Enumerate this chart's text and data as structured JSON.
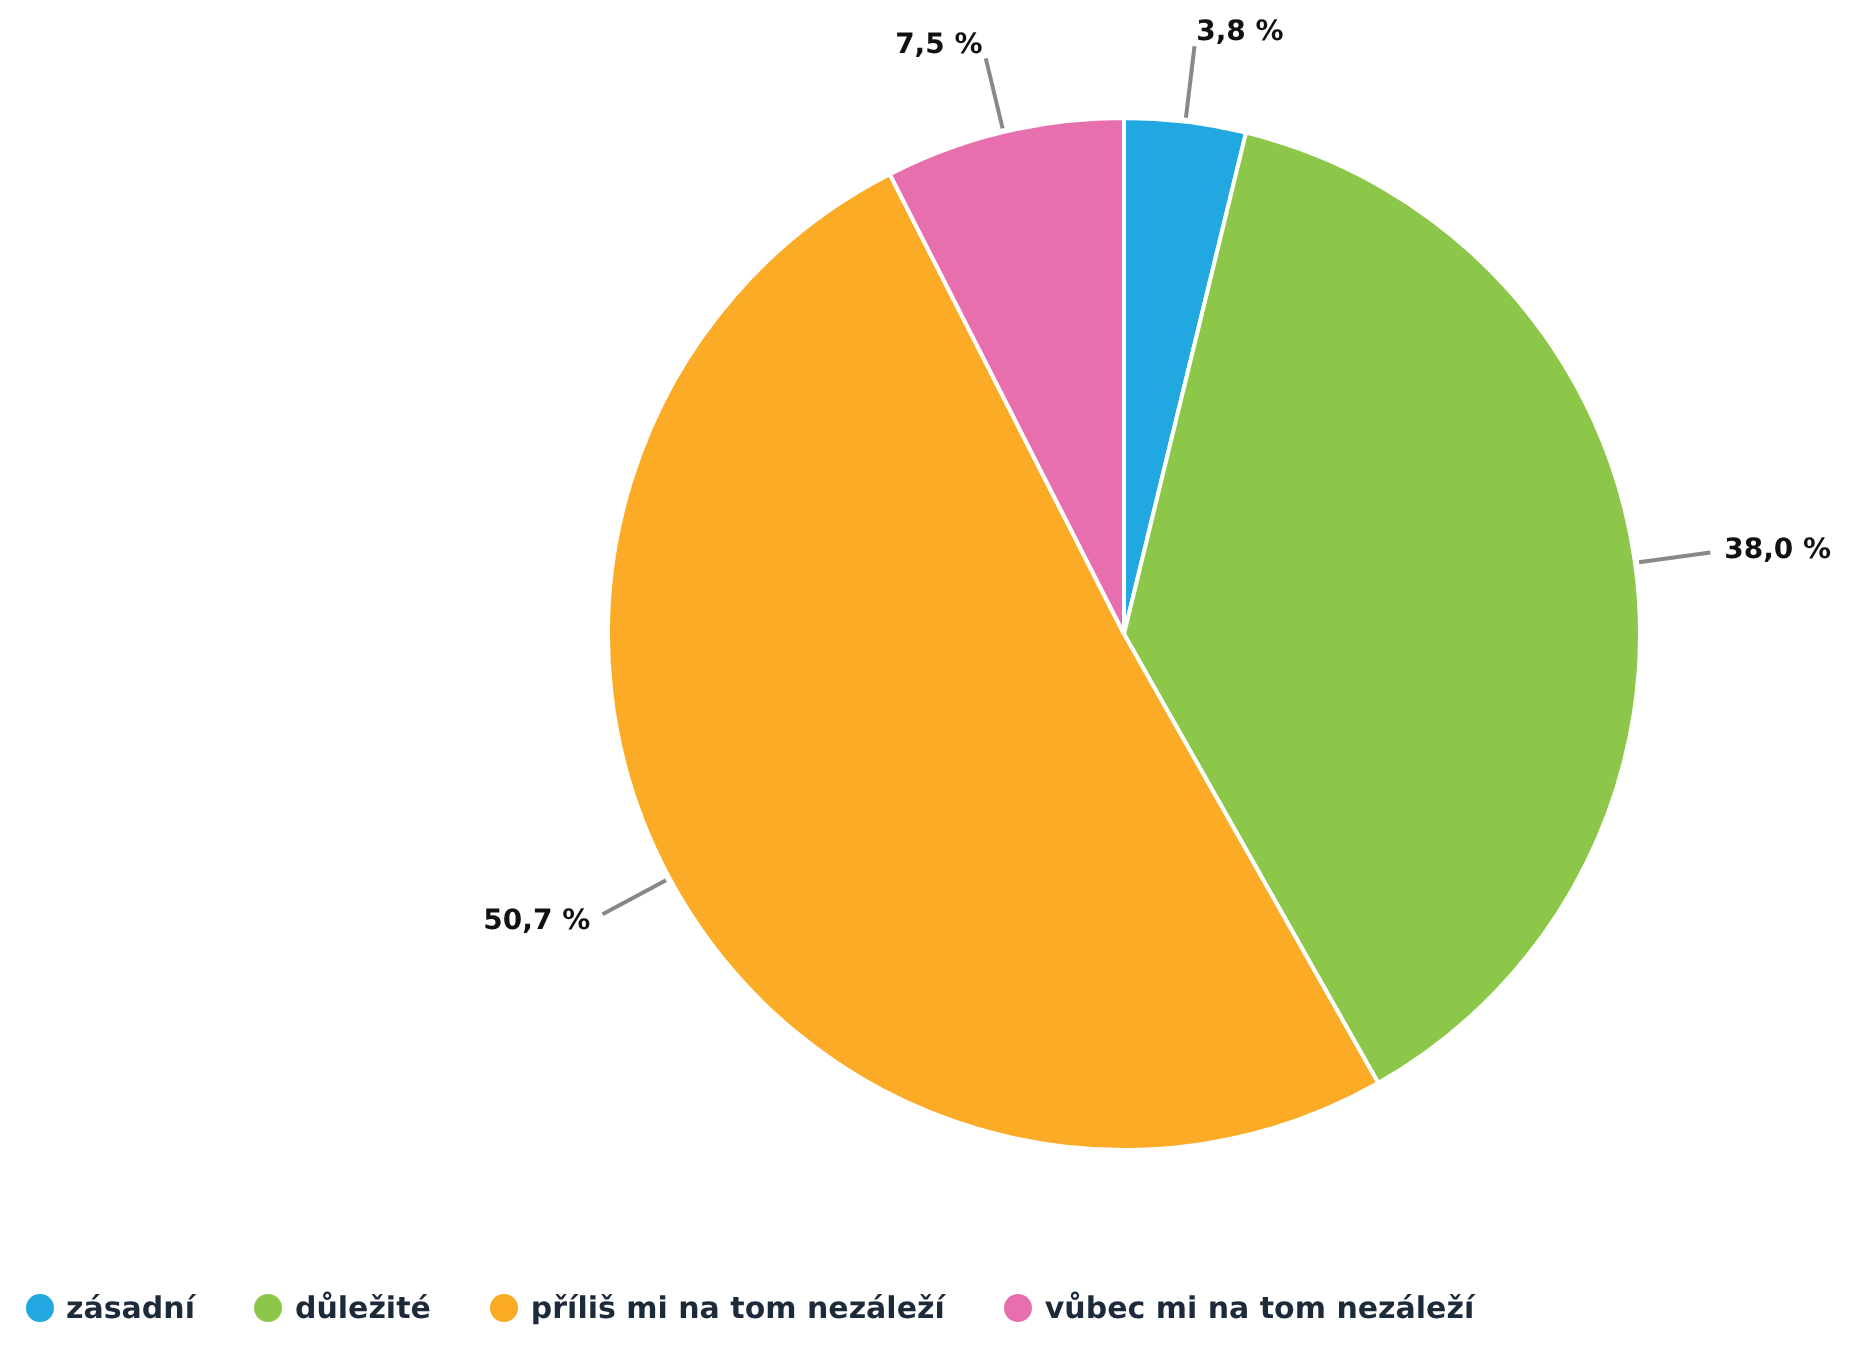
{
  "chart_data": {
    "type": "pie",
    "categories": [
      "zásadní",
      "důležité",
      "příliš mi na tom nezáleží",
      "vůbec mi na tom nezáleží"
    ],
    "values": [
      3.8,
      38.0,
      50.7,
      7.5
    ],
    "value_labels": [
      "3,8 %",
      "38,0 %",
      "50,7 %",
      "7,5 %"
    ],
    "colors": [
      "#22a8e0",
      "#8cc74a",
      "#fbab26",
      "#e86fae"
    ],
    "legend": "bottom"
  }
}
